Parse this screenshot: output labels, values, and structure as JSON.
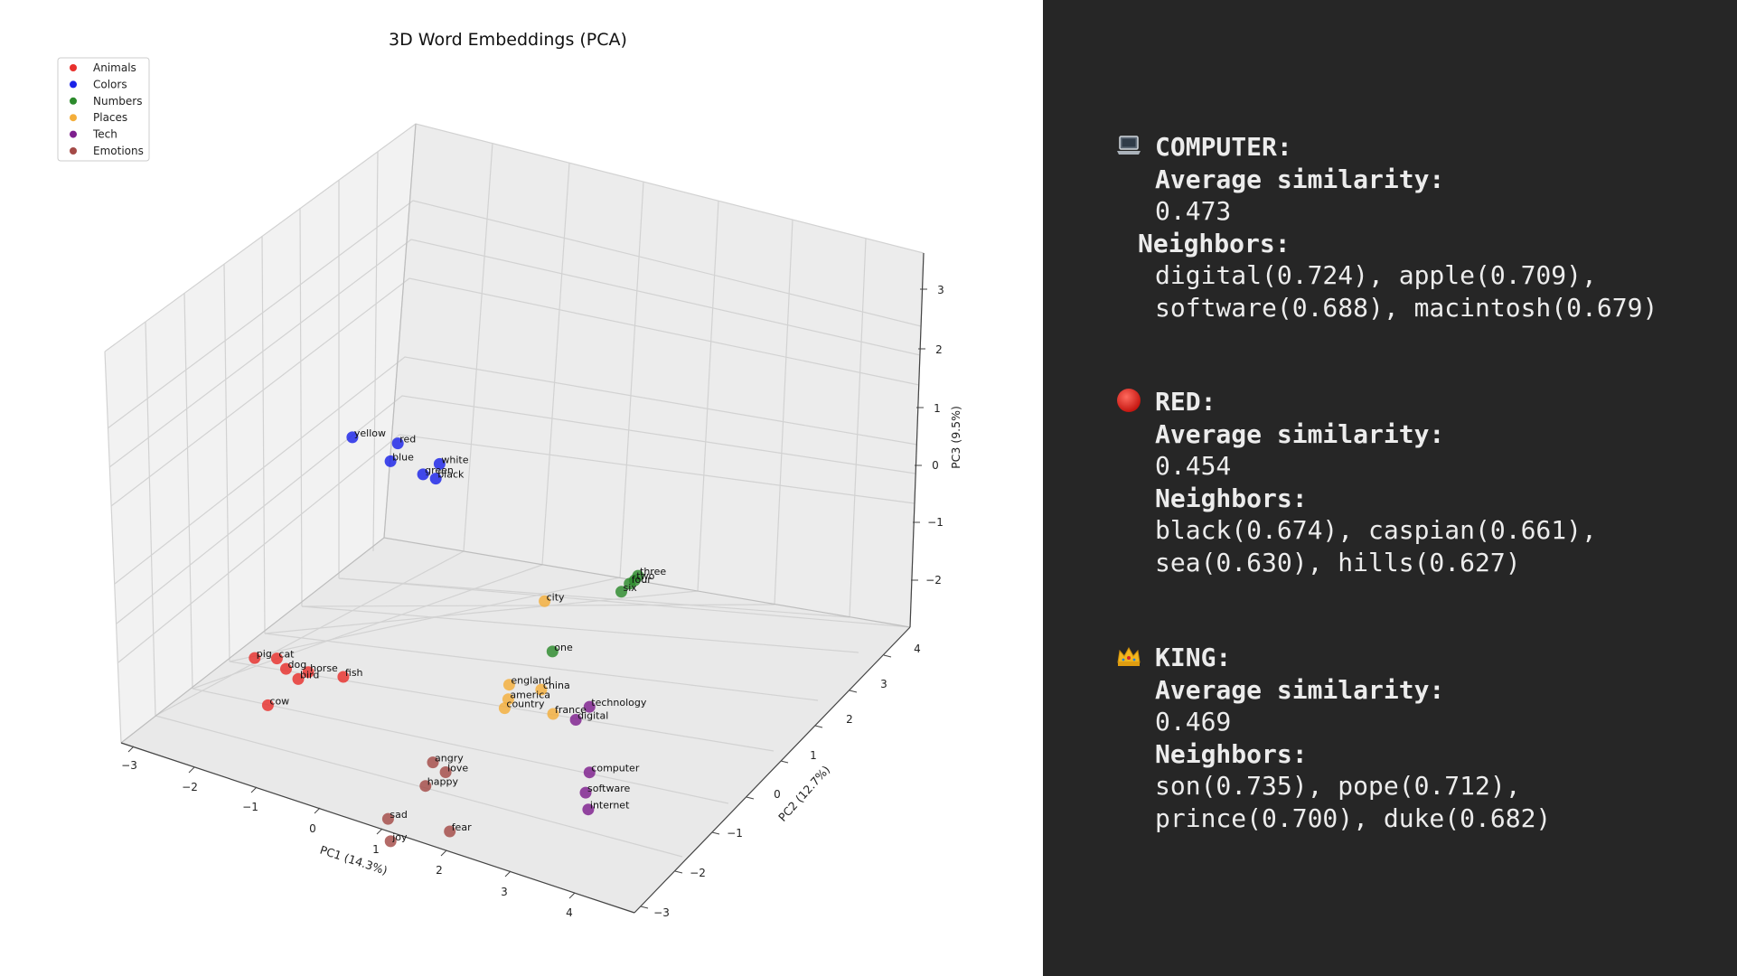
{
  "chart_data": {
    "type": "scatter",
    "title": "3D Word Embeddings (PCA)",
    "xlabel": "PC1 (14.3%)",
    "ylabel": "PC2 (12.7%)",
    "zlabel": "PC3 (9.5%)",
    "x_ticks": [
      "−3",
      "−2",
      "−1",
      "0",
      "1",
      "2",
      "3",
      "4"
    ],
    "y_ticks": [
      "−3",
      "−2",
      "−1",
      "0",
      "1",
      "2",
      "3",
      "4"
    ],
    "z_ticks": [
      "−2",
      "−1",
      "0",
      "1",
      "2",
      "3"
    ],
    "legend_position": "top-left",
    "grid": true,
    "series": [
      {
        "name": "Animals",
        "color": "#e8302c",
        "points": [
          {
            "label": "fish",
            "x": -1.2,
            "y": -0.6,
            "z": 0.4
          },
          {
            "label": "horse",
            "x": -1.8,
            "y": -0.5,
            "z": 0.2
          },
          {
            "label": "bird",
            "x": -1.9,
            "y": -0.6,
            "z": 0.1
          },
          {
            "label": "cat",
            "x": -2.4,
            "y": -0.3,
            "z": 0.1
          },
          {
            "label": "dog",
            "x": -2.2,
            "y": -0.4,
            "z": 0.05
          },
          {
            "label": "pig",
            "x": -2.8,
            "y": -0.2,
            "z": -0.1
          },
          {
            "label": "cow",
            "x": -2.2,
            "y": -0.9,
            "z": -0.3
          }
        ]
      },
      {
        "name": "Colors",
        "color": "#1a22e8",
        "points": [
          {
            "label": "red",
            "x": -1.4,
            "y": 1.2,
            "z": 3.4
          },
          {
            "label": "yellow",
            "x": -2.0,
            "y": 1.0,
            "z": 3.4
          },
          {
            "label": "blue",
            "x": -1.4,
            "y": 1.0,
            "z": 3.2
          },
          {
            "label": "white",
            "x": -0.8,
            "y": 1.3,
            "z": 3.2
          },
          {
            "label": "black",
            "x": -0.8,
            "y": 1.2,
            "z": 3.0
          },
          {
            "label": "green",
            "x": -1.0,
            "y": 1.2,
            "z": 3.0
          }
        ]
      },
      {
        "name": "Numbers",
        "color": "#2c8a2c",
        "points": [
          {
            "label": "three",
            "x": 1.5,
            "y": 2.8,
            "z": 1.2
          },
          {
            "label": "two",
            "x": 1.45,
            "y": 2.8,
            "z": 1.1
          },
          {
            "label": "four",
            "x": 1.4,
            "y": 2.75,
            "z": 1.05
          },
          {
            "label": "six",
            "x": 1.3,
            "y": 2.7,
            "z": 0.9
          },
          {
            "label": "one",
            "x": 0.9,
            "y": 1.5,
            "z": 0.4
          }
        ]
      },
      {
        "name": "Places",
        "color": "#f4ae3a",
        "points": [
          {
            "label": "city",
            "x": 0.6,
            "y": 1.8,
            "z": 1.0
          },
          {
            "label": "england",
            "x": 0.4,
            "y": 1.2,
            "z": -0.2
          },
          {
            "label": "china",
            "x": 0.9,
            "y": 1.2,
            "z": -0.1
          },
          {
            "label": "america",
            "x": 0.5,
            "y": 1.0,
            "z": -0.3
          },
          {
            "label": "country",
            "x": 0.5,
            "y": 0.9,
            "z": -0.4
          },
          {
            "label": "france",
            "x": 1.2,
            "y": 1.0,
            "z": -0.3
          }
        ]
      },
      {
        "name": "Tech",
        "color": "#7e1f8e",
        "points": [
          {
            "label": "technology",
            "x": 1.6,
            "y": 1.3,
            "z": -0.2
          },
          {
            "label": "digital",
            "x": 1.5,
            "y": 1.1,
            "z": -0.35
          },
          {
            "label": "computer",
            "x": 2.0,
            "y": 0.6,
            "z": -0.8
          },
          {
            "label": "software",
            "x": 2.0,
            "y": 0.5,
            "z": -1.1
          },
          {
            "label": "internet",
            "x": 2.1,
            "y": 0.4,
            "z": -1.3
          }
        ]
      },
      {
        "name": "Emotions",
        "color": "#a44a47",
        "points": [
          {
            "label": "angry",
            "x": 0.0,
            "y": -0.2,
            "z": -0.9
          },
          {
            "label": "love",
            "x": 0.2,
            "y": -0.2,
            "z": -1.0
          },
          {
            "label": "happy",
            "x": 0.0,
            "y": -0.4,
            "z": -1.2
          },
          {
            "label": "sad",
            "x": -0.3,
            "y": -0.9,
            "z": -1.6
          },
          {
            "label": "fear",
            "x": 0.5,
            "y": -0.6,
            "z": -1.7
          },
          {
            "label": "joy",
            "x": -0.2,
            "y": -1.0,
            "z": -1.9
          }
        ]
      }
    ]
  },
  "info": {
    "avg_label": "Average similarity:",
    "neighbors_label": "Neighbors:",
    "entries": [
      {
        "icon": "laptop-icon",
        "title": "COMPUTER:",
        "avg": "0.473",
        "neighbors_line1": "digital(0.724), apple(0.709),",
        "neighbors_line2": "software(0.688), macintosh(0.679)"
      },
      {
        "icon": "red-circle-icon",
        "title": "RED:",
        "avg": "0.454",
        "neighbors_line1": "black(0.674), caspian(0.661),",
        "neighbors_line2": "sea(0.630), hills(0.627)"
      },
      {
        "icon": "crown-icon",
        "title": "KING:",
        "avg": "0.469",
        "neighbors_line1": "son(0.735), pope(0.712),",
        "neighbors_line2": "prince(0.700), duke(0.682)"
      }
    ]
  }
}
